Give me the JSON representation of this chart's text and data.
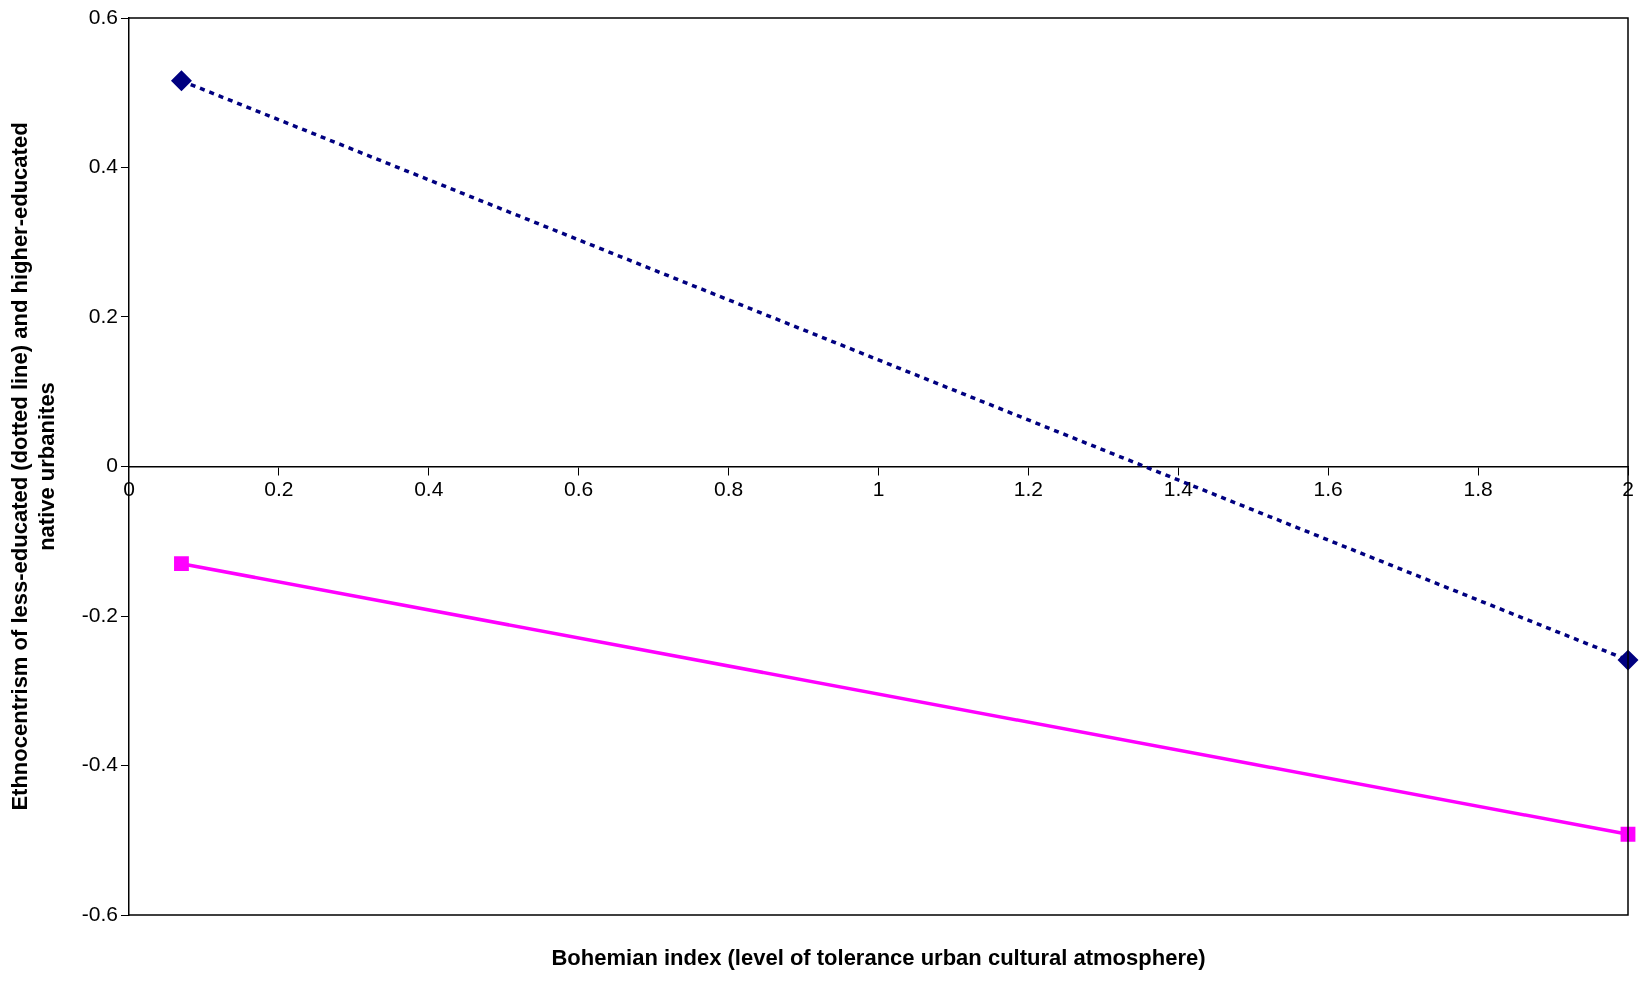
{
  "chart_data": {
    "type": "line",
    "xlabel": "Bohemian index (level of tolerance urban cultural atmosphere)",
    "ylabel": "Ethnocentrism of less-educated (dotted line) and higher-educated native urbanites",
    "x": [
      0.07,
      2
    ],
    "xlim": [
      0,
      2
    ],
    "xticks": [
      0,
      0.2,
      0.4,
      0.6,
      0.8,
      1,
      1.2,
      1.4,
      1.6,
      1.8,
      2
    ],
    "ylim": [
      -0.6,
      0.6
    ],
    "yticks": [
      -0.6,
      -0.4,
      -0.2,
      0,
      0.2,
      0.4,
      0.6
    ],
    "grid": false,
    "legend": false,
    "series": [
      {
        "color": "#000080",
        "values": [
          0.516,
          -0.259
        ],
        "marker": "diamond",
        "line_style": "dotted"
      },
      {
        "color": "#ff00ff",
        "values": [
          -0.13,
          -0.492
        ],
        "marker": "square",
        "line_style": "solid"
      }
    ]
  }
}
